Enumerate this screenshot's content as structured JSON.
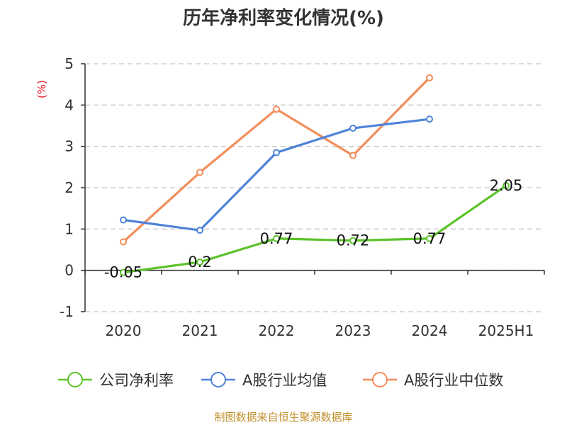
{
  "chart_data": {
    "type": "line",
    "title": "历年净利率变化情况(%)",
    "ylabel": "(%)",
    "categories": [
      "2020",
      "2021",
      "2022",
      "2023",
      "2024",
      "2025H1"
    ],
    "ylim": [
      -1,
      5
    ],
    "yticks": [
      "5",
      "4",
      "3",
      "2",
      "1",
      "0",
      "-1"
    ],
    "grid": true,
    "legend_position": "bottom",
    "series": [
      {
        "name": "公司净利率",
        "color": "#5dc22a",
        "values": [
          -0.05,
          0.2,
          0.77,
          0.72,
          0.77,
          2.05
        ],
        "data_labels": [
          "-0.05",
          "0.2",
          "0.77",
          "0.72",
          "0.77",
          "2.05"
        ]
      },
      {
        "name": "A股行业均值",
        "color": "#4e83d9",
        "values": [
          1.22,
          0.97,
          2.85,
          3.44,
          3.66,
          null
        ],
        "data_labels": []
      },
      {
        "name": "A股行业中位数",
        "color": "#f28e5b",
        "values": [
          0.69,
          2.37,
          3.9,
          2.78,
          4.66,
          null
        ],
        "data_labels": []
      }
    ]
  },
  "source": "制图数据来自恒生聚源数据库"
}
